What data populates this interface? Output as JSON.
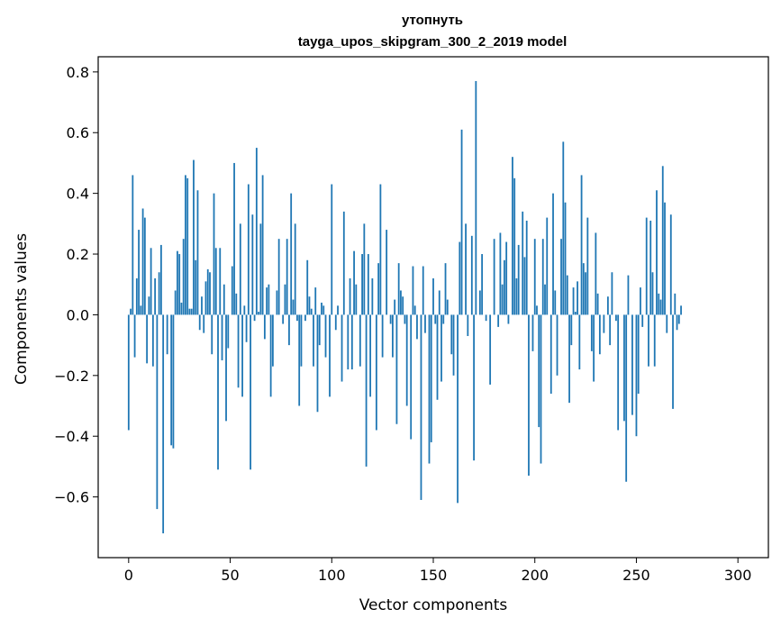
{
  "chart_data": {
    "type": "bar",
    "title_line1": "утопнуть",
    "title_line2": "tayga_upos_skipgram_300_2_2019 model",
    "xlabel": "Vector components",
    "ylabel": "Components values",
    "xlim": [
      -15,
      315
    ],
    "ylim": [
      -0.8,
      0.85
    ],
    "xticks": [
      0,
      50,
      100,
      150,
      200,
      250,
      300
    ],
    "yticks": [
      -0.6,
      -0.4,
      -0.2,
      0.0,
      0.2,
      0.4,
      0.6,
      0.8
    ],
    "ytick_labels": [
      "−0.6",
      "−0.4",
      "−0.2",
      "0.0",
      "0.2",
      "0.4",
      "0.6",
      "0.8"
    ],
    "xtick_labels": [
      "0",
      "50",
      "100",
      "150",
      "200",
      "250",
      "300"
    ],
    "bar_color": "#1f77b4",
    "values": [
      -0.38,
      0.02,
      0.46,
      -0.14,
      0.12,
      0.28,
      0.03,
      0.35,
      0.32,
      -0.16,
      0.06,
      0.22,
      -0.17,
      0.12,
      -0.64,
      0.14,
      0.23,
      -0.72,
      0.0,
      -0.13,
      0.0,
      -0.43,
      -0.44,
      0.08,
      0.21,
      0.2,
      0.04,
      0.25,
      0.46,
      0.45,
      0.02,
      0.02,
      0.51,
      0.18,
      0.41,
      -0.05,
      0.06,
      -0.06,
      0.11,
      0.15,
      0.14,
      -0.13,
      0.4,
      0.22,
      -0.51,
      0.22,
      -0.15,
      0.1,
      -0.35,
      -0.11,
      0.0,
      0.16,
      0.5,
      0.07,
      -0.24,
      0.3,
      -0.27,
      0.03,
      -0.09,
      0.43,
      -0.51,
      0.33,
      -0.02,
      0.55,
      0.01,
      0.3,
      0.46,
      -0.08,
      0.09,
      0.1,
      -0.27,
      -0.17,
      0.0,
      0.08,
      0.25,
      0.0,
      -0.03,
      0.1,
      0.25,
      -0.1,
      0.4,
      0.05,
      0.3,
      -0.02,
      -0.3,
      -0.17,
      0.0,
      -0.02,
      0.18,
      0.06,
      0.02,
      -0.17,
      0.09,
      -0.32,
      -0.1,
      0.04,
      0.03,
      -0.14,
      0.0,
      -0.27,
      0.43,
      0.0,
      -0.05,
      0.03,
      0.0,
      -0.22,
      0.34,
      0.0,
      -0.18,
      0.12,
      -0.18,
      0.21,
      0.1,
      0.0,
      -0.17,
      0.2,
      0.3,
      -0.5,
      0.2,
      -0.27,
      0.12,
      0.0,
      -0.38,
      0.17,
      0.43,
      -0.14,
      0.0,
      0.28,
      0.0,
      -0.03,
      -0.14,
      0.05,
      -0.36,
      0.17,
      0.08,
      0.06,
      -0.03,
      -0.3,
      0.0,
      -0.41,
      0.16,
      0.03,
      -0.08,
      0.0,
      -0.61,
      0.16,
      -0.06,
      0.0,
      -0.49,
      -0.42,
      0.12,
      -0.03,
      -0.28,
      0.08,
      -0.22,
      -0.03,
      0.17,
      0.05,
      0.0,
      -0.13,
      -0.2,
      0.0,
      -0.62,
      0.24,
      0.61,
      0.0,
      0.3,
      -0.07,
      0.0,
      0.26,
      -0.48,
      0.77,
      0.0,
      0.08,
      0.2,
      0.0,
      -0.02,
      0.0,
      -0.23,
      0.0,
      0.25,
      0.0,
      -0.04,
      0.27,
      0.1,
      0.18,
      0.24,
      -0.03,
      0.0,
      0.52,
      0.45,
      0.12,
      0.23,
      0.0,
      0.34,
      0.19,
      0.31,
      -0.53,
      0.0,
      -0.12,
      0.25,
      0.03,
      -0.37,
      -0.49,
      0.25,
      0.1,
      0.32,
      0.0,
      -0.26,
      0.4,
      0.08,
      -0.2,
      0.0,
      0.25,
      0.57,
      0.37,
      0.13,
      -0.29,
      -0.1,
      0.09,
      0.01,
      0.11,
      -0.18,
      0.46,
      0.17,
      0.14,
      0.32,
      0.0,
      -0.12,
      -0.22,
      0.27,
      0.07,
      -0.13,
      0.0,
      -0.06,
      0.0,
      0.06,
      -0.1,
      0.14,
      0.0,
      -0.02,
      -0.38,
      0.0,
      0.0,
      -0.35,
      -0.55,
      0.13,
      0.0,
      -0.33,
      0.0,
      -0.4,
      -0.26,
      0.09,
      -0.04,
      0.0,
      0.32,
      -0.17,
      0.31,
      0.14,
      -0.17,
      0.41,
      0.07,
      0.05,
      0.49,
      0.37,
      -0.06,
      0.0,
      0.33,
      -0.31,
      0.07,
      -0.05,
      -0.03,
      0.03
    ]
  }
}
